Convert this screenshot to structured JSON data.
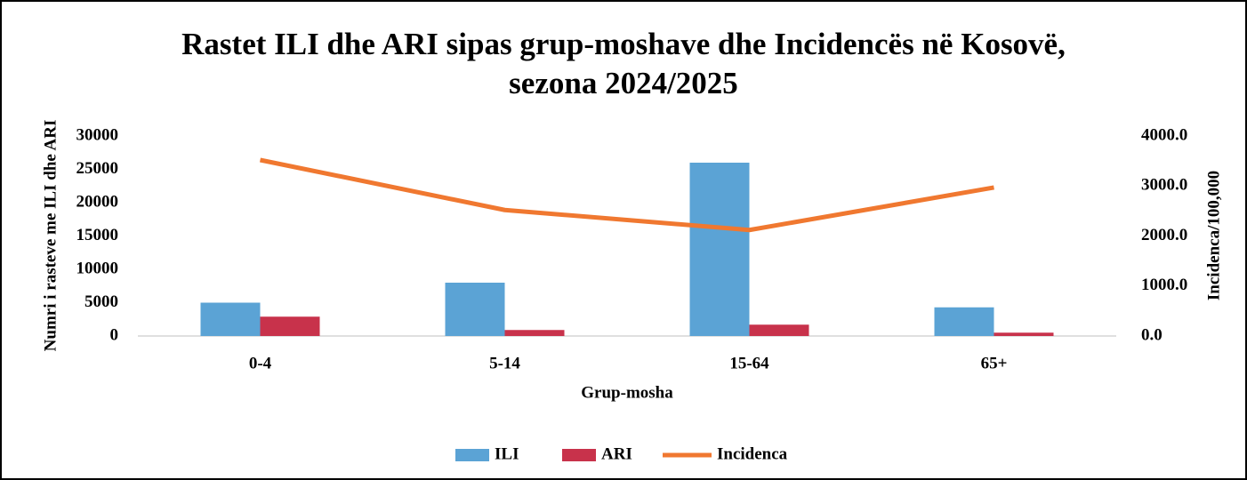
{
  "chart_data": {
    "type": "bar-line",
    "title": "Rastet ILI dhe ARI sipas grup-moshave dhe Incidencës në Kosovë, sezona 2024/2025",
    "x_label": "Grup-mosha",
    "y_label": "Numri i rasteve me ILI dhe ARI",
    "y2_label": "Incidenca/100,000",
    "categories": [
      "0-4",
      "5-14",
      "15-64",
      "65+"
    ],
    "series": [
      {
        "name": "ILI",
        "type": "bar",
        "color": "#5ba3d5",
        "values": [
          5000,
          8000,
          26000,
          4300
        ]
      },
      {
        "name": "ARI",
        "type": "bar",
        "color": "#c8324b",
        "values": [
          2900,
          900,
          1700,
          500
        ]
      },
      {
        "name": "Incidenca",
        "type": "line",
        "axis": "y2",
        "color": "#f07830",
        "values": [
          3520,
          2520,
          2120,
          2970
        ]
      }
    ],
    "ylim": [
      0,
      30000
    ],
    "yticks": [
      0,
      5000,
      10000,
      15000,
      20000,
      25000,
      30000
    ],
    "y2lim": [
      0,
      4000
    ],
    "y2ticks": [
      {
        "value": 0,
        "label": "0.0"
      },
      {
        "value": 1000,
        "label": "1000.0"
      },
      {
        "value": 2000,
        "label": "2000.0"
      },
      {
        "value": 3000,
        "label": "3000.0"
      },
      {
        "value": 4000,
        "label": "4000.0"
      }
    ],
    "legend": "bottom",
    "grid": false
  }
}
